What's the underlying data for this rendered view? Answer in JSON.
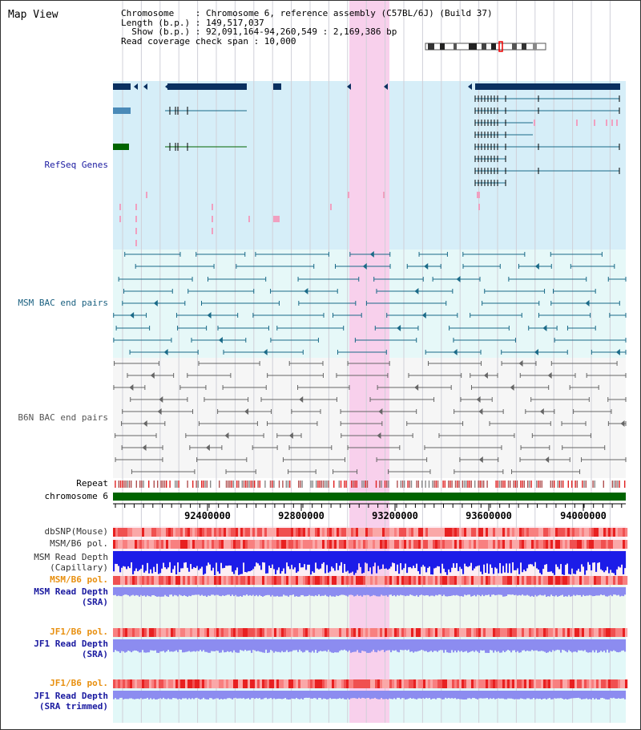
{
  "view": {
    "title": "Map View"
  },
  "info": {
    "chromosome": "Chromosome    : Chromosome 6, reference assembly (C57BL/6J) (Build 37)",
    "length": "Length (b.p.) : 149,517,037",
    "show": "  Show (b.p.) : 92,091,164-94,260,549 : 2,169,386 bp",
    "coverage": "Read coverage check span : 10,000"
  },
  "tracks": {
    "refseq": "RefSeq Genes",
    "msm_bac": "MSM BAC end pairs",
    "b6n_bac": "B6N BAC end pairs",
    "repeat": "Repeat",
    "chromosome": "chromosome 6",
    "dbsnp": "dbSNP(Mouse)",
    "msm_b6_pol_1": "MSM/B6 pol.",
    "msm_depth_cap_1": "MSM Read Depth",
    "msm_depth_cap_2": "(Capillary)",
    "msm_b6_pol_2": "MSM/B6 pol.",
    "msm_depth_sra_1": "MSM Read Depth",
    "msm_depth_sra_2": "(SRA)",
    "jf1_b6_pol_1": "JF1/B6 pol.",
    "jf1_depth_sra_1": "JF1 Read Depth",
    "jf1_depth_sra_2": "(SRA)",
    "jf1_b6_pol_2": "JF1/B6 pol.",
    "jf1_depth_trim_1": "JF1 Read Depth",
    "jf1_depth_trim_2": "(SRA trimmed)"
  },
  "axis": {
    "ticks": [
      "92400000",
      "92800000",
      "93200000",
      "93600000",
      "94000000"
    ]
  },
  "colors": {
    "refseq_bg": "#d6eef8",
    "msm_bac_bg": "#e6f8f8",
    "b6n_bac_bg": "#f6f6f6",
    "highlight": "#f8d0ec",
    "gene": "#0a3060",
    "msm_line": "#1a6a88",
    "b6n_line": "#666666",
    "chrom_bar": "#006400",
    "depth_cap": "#1c1ce8",
    "depth_sra": "#8c8cf0",
    "label_blue": "#1a1aa0",
    "label_teal": "#1a6080",
    "label_orange": "#e89010"
  }
}
